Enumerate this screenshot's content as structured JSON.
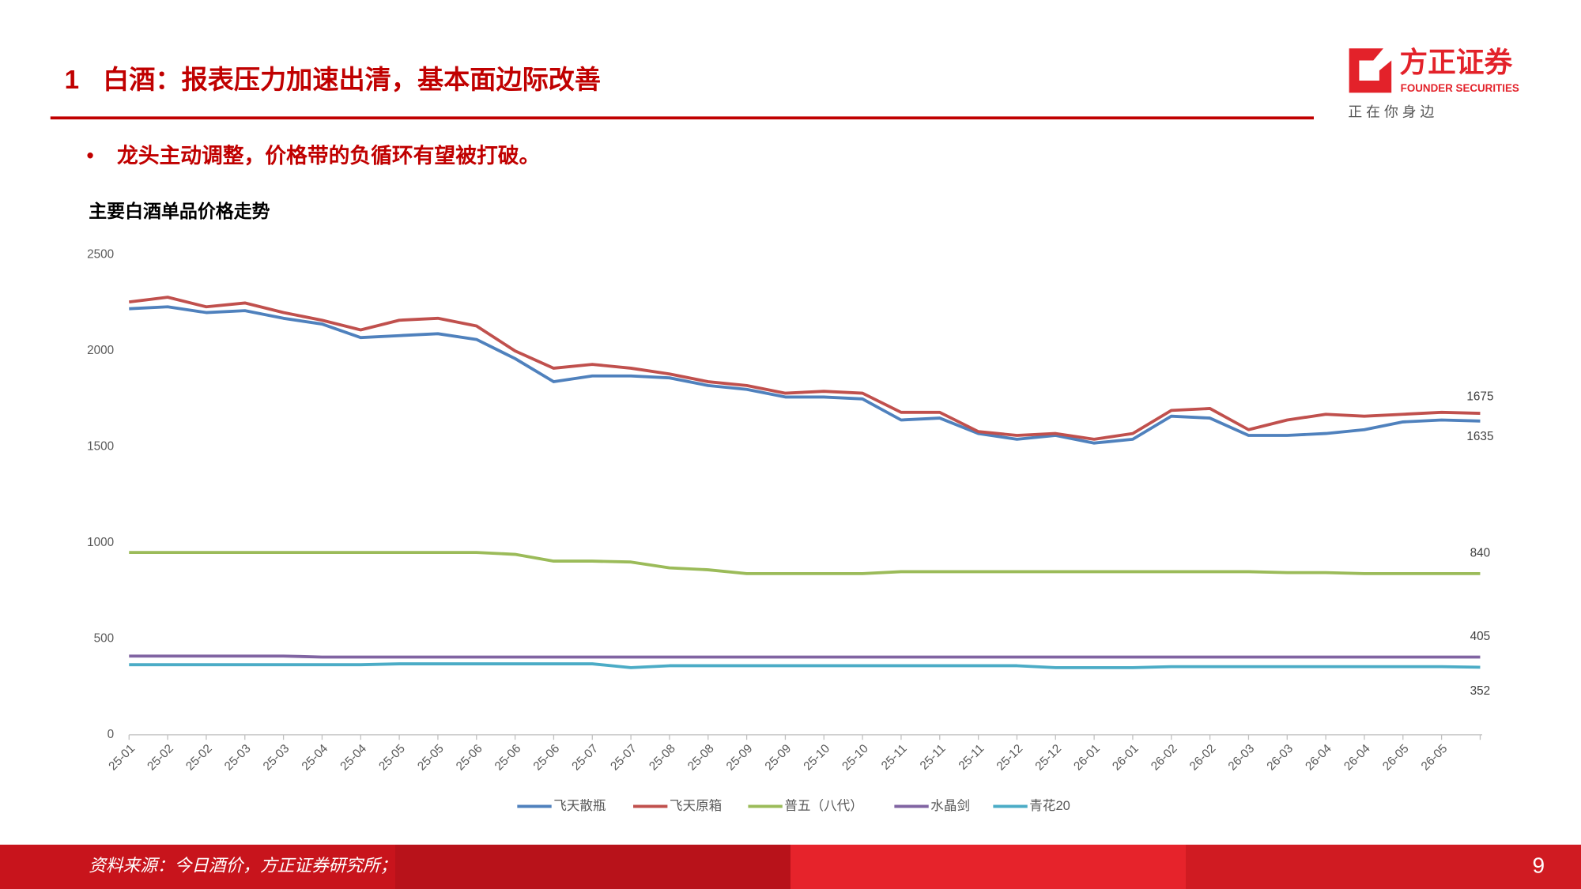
{
  "header": {
    "section_number": "1",
    "title": "白酒：报表压力加速出清，基本面边际改善",
    "logo_name": "方正证券",
    "logo_en": "FOUNDER SECURITIES",
    "slogan": "正 在 你 身 边"
  },
  "bullet": "龙头主动调整，价格带的负循环有望被打破。",
  "chart_data": {
    "type": "line",
    "title": "主要白酒单品价格走势",
    "categories": [
      "25-01",
      "25-02",
      "25-02",
      "25-03",
      "25-03",
      "25-04",
      "25-04",
      "25-05",
      "25-05",
      "25-06",
      "25-06",
      "25-06",
      "25-07",
      "25-07",
      "25-08",
      "25-08",
      "25-09",
      "25-09",
      "25-10",
      "25-10",
      "25-11",
      "25-11",
      "25-11",
      "25-12",
      "25-12",
      "26-01",
      "26-01",
      "26-02",
      "26-02",
      "26-03",
      "26-03",
      "26-04",
      "26-04",
      "26-05",
      "26-05",
      null
    ],
    "series": [
      {
        "name": "飞天散瓶",
        "color": "#4f81bd",
        "values": [
          2220,
          2230,
          2200,
          2210,
          2170,
          2140,
          2070,
          2080,
          2090,
          2060,
          1960,
          1840,
          1870,
          1870,
          1860,
          1820,
          1800,
          1760,
          1760,
          1750,
          1640,
          1650,
          1570,
          1540,
          1560,
          1520,
          1540,
          1660,
          1650,
          1560,
          1560,
          1570,
          1590,
          1630,
          1640,
          1635
        ]
      },
      {
        "name": "飞天原箱",
        "color": "#c0504d",
        "values": [
          2255,
          2280,
          2230,
          2250,
          2200,
          2160,
          2110,
          2160,
          2170,
          2130,
          2000,
          1910,
          1930,
          1910,
          1880,
          1840,
          1820,
          1780,
          1790,
          1780,
          1680,
          1680,
          1580,
          1560,
          1570,
          1540,
          1570,
          1690,
          1700,
          1590,
          1640,
          1670,
          1660,
          1670,
          1680,
          1675
        ]
      },
      {
        "name": "普五（八代）",
        "color": "#9bbb59",
        "values": [
          950,
          950,
          950,
          950,
          950,
          950,
          950,
          950,
          950,
          950,
          940,
          905,
          905,
          900,
          870,
          860,
          840,
          840,
          840,
          840,
          850,
          850,
          850,
          850,
          850,
          850,
          850,
          850,
          850,
          850,
          845,
          845,
          840,
          840,
          840,
          840
        ]
      },
      {
        "name": "水晶剑",
        "color": "#8064a2",
        "values": [
          410,
          410,
          410,
          410,
          410,
          405,
          405,
          405,
          405,
          405,
          405,
          405,
          405,
          405,
          405,
          405,
          405,
          405,
          405,
          405,
          405,
          405,
          405,
          405,
          405,
          405,
          405,
          405,
          405,
          405,
          405,
          405,
          405,
          405,
          405,
          405
        ]
      },
      {
        "name": "青花20",
        "color": "#4bacc6",
        "values": [
          365,
          365,
          365,
          365,
          365,
          365,
          365,
          370,
          370,
          370,
          370,
          370,
          370,
          350,
          360,
          360,
          360,
          360,
          360,
          360,
          360,
          360,
          360,
          360,
          350,
          350,
          350,
          355,
          355,
          355,
          355,
          355,
          355,
          355,
          355,
          352
        ]
      }
    ],
    "ylim": [
      0,
      2500
    ],
    "yticks": [
      0,
      500,
      1000,
      1500,
      2000,
      2500
    ],
    "grid": false,
    "legend": "bottom"
  },
  "footer": {
    "source": "资料来源：今日酒价，方正证券研究所；",
    "page": "9"
  }
}
